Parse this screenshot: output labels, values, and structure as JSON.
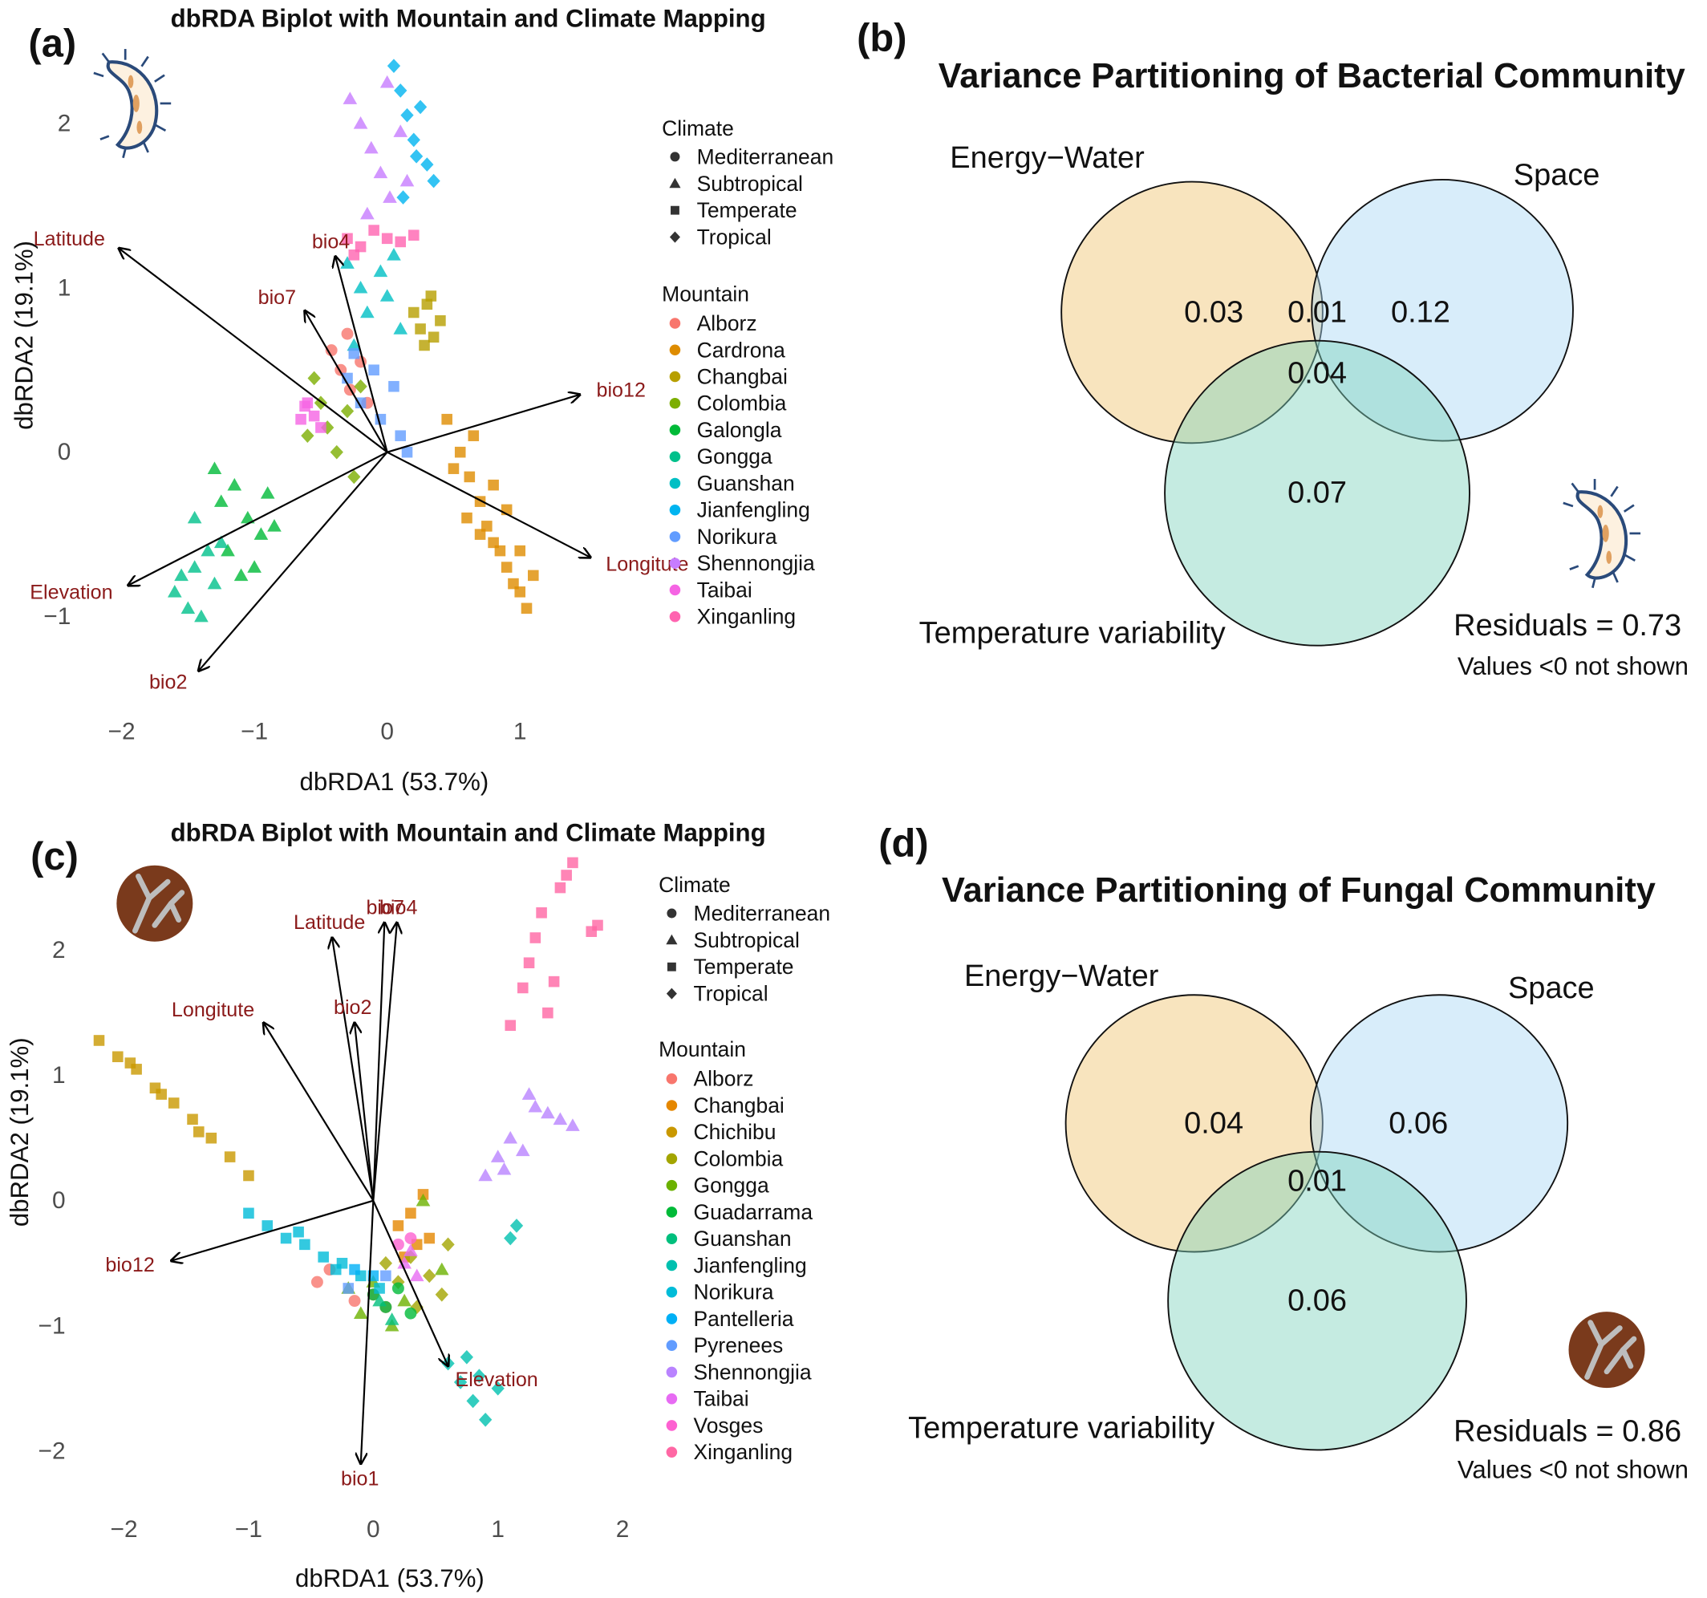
{
  "chart_data": [
    {
      "type": "scatter",
      "panel_label": "(a)",
      "title": "dbRDA Biplot with Mountain and Climate Mapping",
      "xlabel": "dbRDA1 (53.7%)",
      "ylabel": "dbRDA2 (19.1%)",
      "xlim": [
        -2.3,
        1.2
      ],
      "ylim": [
        -1.6,
        2.4
      ],
      "xticks": [
        {
          "value": -2,
          "label": "−2"
        },
        {
          "value": -1,
          "label": "−1"
        },
        0,
        1
      ],
      "yticks": [
        {
          "value": -1,
          "label": "−1"
        },
        0,
        1,
        2
      ],
      "climate_title": "Climate",
      "climates": [
        {
          "name": "Mediterranean",
          "shape": "circle"
        },
        {
          "name": "Subtropical",
          "shape": "triangle"
        },
        {
          "name": "Temperate",
          "shape": "square"
        },
        {
          "name": "Tropical",
          "shape": "diamond"
        }
      ],
      "legend_title": "Mountain",
      "series": [
        {
          "name": "Alborz",
          "color": "#F8766D",
          "shape": "circle",
          "x": [
            -0.42,
            -0.35,
            -0.28,
            -0.2,
            -0.15,
            -0.3
          ],
          "y": [
            0.62,
            0.5,
            0.38,
            0.55,
            0.3,
            0.72
          ]
        },
        {
          "name": "Cardrona",
          "color": "#DE8C00",
          "shape": "square",
          "x": [
            0.45,
            0.55,
            0.62,
            0.7,
            0.75,
            0.8,
            0.85,
            0.9,
            0.95,
            1.0,
            1.05,
            1.1,
            0.6,
            0.7,
            0.8,
            0.9,
            1.0,
            0.65,
            0.5
          ],
          "y": [
            0.2,
            0.0,
            -0.15,
            -0.3,
            -0.45,
            -0.55,
            -0.6,
            -0.7,
            -0.8,
            -0.85,
            -0.95,
            -0.75,
            -0.4,
            -0.5,
            -0.2,
            -0.35,
            -0.6,
            0.1,
            -0.1
          ]
        },
        {
          "name": "Changbai",
          "color": "#B79F00",
          "shape": "square",
          "x": [
            0.2,
            0.25,
            0.3,
            0.35,
            0.4,
            0.28,
            0.33
          ],
          "y": [
            0.85,
            0.75,
            0.9,
            0.7,
            0.8,
            0.65,
            0.95
          ]
        },
        {
          "name": "Colombia",
          "color": "#7CAE00",
          "shape": "diamond",
          "x": [
            -0.6,
            -0.5,
            -0.45,
            -0.38,
            -0.3,
            -0.25,
            -0.55,
            -0.2
          ],
          "y": [
            0.1,
            0.3,
            0.15,
            0.0,
            0.25,
            -0.15,
            0.45,
            0.4
          ]
        },
        {
          "name": "Galongla",
          "color": "#00BA38",
          "shape": "triangle",
          "x": [
            -1.25,
            -1.15,
            -1.05,
            -0.95,
            -0.9,
            -1.2,
            -1.1,
            -1.0,
            -0.85,
            -1.3
          ],
          "y": [
            -0.3,
            -0.2,
            -0.4,
            -0.5,
            -0.25,
            -0.6,
            -0.75,
            -0.7,
            -0.45,
            -0.1
          ]
        },
        {
          "name": "Gongga",
          "color": "#00C08B",
          "shape": "triangle",
          "x": [
            -1.6,
            -1.5,
            -1.45,
            -1.4,
            -1.35,
            -1.3,
            -1.55,
            -1.25,
            -1.45
          ],
          "y": [
            -0.85,
            -0.95,
            -0.7,
            -1.0,
            -0.6,
            -0.8,
            -0.75,
            -0.55,
            -0.4
          ]
        },
        {
          "name": "Guanshan",
          "color": "#00BFC4",
          "shape": "triangle",
          "x": [
            -0.3,
            -0.2,
            -0.15,
            -0.05,
            0.0,
            0.1,
            -0.25,
            0.05
          ],
          "y": [
            1.15,
            1.0,
            0.85,
            1.1,
            0.95,
            0.75,
            0.65,
            1.2
          ]
        },
        {
          "name": "Jianfengling",
          "color": "#00B4F0",
          "shape": "diamond",
          "x": [
            0.05,
            0.1,
            0.15,
            0.2,
            0.25,
            0.3,
            0.35,
            0.12,
            0.22
          ],
          "y": [
            2.35,
            2.2,
            2.05,
            1.9,
            2.1,
            1.75,
            1.65,
            1.55,
            1.8
          ]
        },
        {
          "name": "Norikura",
          "color": "#619CFF",
          "shape": "square",
          "x": [
            -0.3,
            -0.2,
            -0.1,
            -0.05,
            0.05,
            0.1,
            0.15,
            -0.25
          ],
          "y": [
            0.45,
            0.3,
            0.5,
            0.2,
            0.4,
            0.1,
            0.0,
            0.6
          ]
        },
        {
          "name": "Shennongjia",
          "color": "#C77CFF",
          "shape": "triangle",
          "x": [
            -0.28,
            -0.2,
            -0.12,
            -0.05,
            0.02,
            0.1,
            0.15,
            -0.15,
            0.0
          ],
          "y": [
            2.15,
            2.0,
            1.85,
            1.7,
            1.55,
            1.95,
            1.65,
            1.45,
            2.25
          ]
        },
        {
          "name": "Taibai",
          "color": "#F564E3",
          "shape": "square",
          "x": [
            -0.65,
            -0.6,
            -0.55,
            -0.5,
            -0.62
          ],
          "y": [
            0.2,
            0.3,
            0.22,
            0.15,
            0.28
          ]
        },
        {
          "name": "Xinganling",
          "color": "#FF64B0",
          "shape": "square",
          "x": [
            -0.3,
            -0.2,
            -0.1,
            0.0,
            0.1,
            0.2,
            -0.25
          ],
          "y": [
            1.3,
            1.25,
            1.35,
            1.3,
            1.28,
            1.32,
            1.2
          ]
        }
      ],
      "arrows": [
        {
          "label": "Latitude",
          "x": -2.02,
          "y": 1.24
        },
        {
          "label": "bio4",
          "x": -0.39,
          "y": 1.19
        },
        {
          "label": "bio7",
          "x": -0.62,
          "y": 0.86
        },
        {
          "label": "bio12",
          "x": 1.45,
          "y": 0.35
        },
        {
          "label": "Longitute",
          "x": 1.53,
          "y": -0.64
        },
        {
          "label": "Elevation",
          "x": -1.95,
          "y": -0.81
        },
        {
          "label": "bio2",
          "x": -1.42,
          "y": -1.33
        }
      ]
    },
    {
      "type": "venn",
      "panel_label": "(b)",
      "title": "Variance Partitioning of Bacterial Community",
      "sets": [
        {
          "name": "Energy−Water",
          "color": "#EFC46E"
        },
        {
          "name": "Space",
          "color": "#A9D8F5"
        },
        {
          "name": "Temperature variability",
          "color": "#7FD3BD"
        }
      ],
      "regions": [
        {
          "sets": [
            "Energy−Water"
          ],
          "value": 0.03
        },
        {
          "sets": [
            "Energy−Water",
            "Space"
          ],
          "value": 0.01
        },
        {
          "sets": [
            "Space"
          ],
          "value": 0.12
        },
        {
          "sets": [
            "Energy−Water",
            "Space",
            "Temperature variability"
          ],
          "value": 0.04
        },
        {
          "sets": [
            "Temperature variability"
          ],
          "value": 0.07
        }
      ],
      "residuals": "Residuals = 0.73",
      "note": "Values <0 not shown"
    },
    {
      "type": "scatter",
      "panel_label": "(c)",
      "title": "dbRDA Biplot with Mountain and Climate Mapping",
      "xlabel": "dbRDA1 (53.7%)",
      "ylabel": "dbRDA2 (19.1%)",
      "xlim": [
        -2.4,
        2.15
      ],
      "ylim": [
        -2.4,
        2.8
      ],
      "xticks": [
        {
          "value": -2,
          "label": "−2"
        },
        {
          "value": -1,
          "label": "−1"
        },
        0,
        1,
        2
      ],
      "yticks": [
        {
          "value": -2,
          "label": "−2"
        },
        {
          "value": -1,
          "label": "−1"
        },
        0,
        1,
        2
      ],
      "climate_title": "Climate",
      "climates": [
        {
          "name": "Mediterranean",
          "shape": "circle"
        },
        {
          "name": "Subtropical",
          "shape": "triangle"
        },
        {
          "name": "Temperate",
          "shape": "square"
        },
        {
          "name": "Tropical",
          "shape": "diamond"
        }
      ],
      "legend_title": "Mountain",
      "series": [
        {
          "name": "Alborz",
          "color": "#F8766D",
          "shape": "circle",
          "x": [
            -0.45,
            -0.35,
            -0.15,
            0.0,
            0.1
          ],
          "y": [
            -0.65,
            -0.55,
            -0.8,
            -0.75,
            -0.85
          ]
        },
        {
          "name": "Changbai",
          "color": "#E58700",
          "shape": "square",
          "x": [
            0.2,
            0.3,
            0.4,
            0.45,
            0.35,
            0.25
          ],
          "y": [
            -0.2,
            -0.1,
            0.05,
            -0.3,
            -0.35,
            -0.45
          ]
        },
        {
          "name": "Chichibu",
          "color": "#C99800",
          "shape": "square",
          "x": [
            -2.2,
            -2.05,
            -1.9,
            -1.75,
            -1.6,
            -1.45,
            -1.3,
            -1.15,
            -1.0,
            -1.95,
            -1.7,
            -1.4
          ],
          "y": [
            1.28,
            1.15,
            1.05,
            0.9,
            0.78,
            0.65,
            0.5,
            0.35,
            0.2,
            1.1,
            0.85,
            0.55
          ]
        },
        {
          "name": "Colombia",
          "color": "#A3A500",
          "shape": "diamond",
          "x": [
            0.1,
            0.2,
            0.3,
            0.45,
            0.55,
            0.6,
            0.35
          ],
          "y": [
            -0.5,
            -0.65,
            -0.45,
            -0.6,
            -0.75,
            -0.35,
            -0.85
          ]
        },
        {
          "name": "Gongga",
          "color": "#6BB100",
          "shape": "triangle",
          "x": [
            -0.2,
            -0.1,
            0.0,
            0.15,
            0.25,
            0.4,
            0.55
          ],
          "y": [
            -0.7,
            -0.9,
            -0.65,
            -1.0,
            -0.8,
            0.0,
            -0.55
          ]
        },
        {
          "name": "Guadarrama",
          "color": "#00BA38",
          "shape": "circle",
          "x": [
            0.0,
            0.1,
            0.2,
            0.3
          ],
          "y": [
            -0.75,
            -0.85,
            -0.7,
            -0.9
          ]
        },
        {
          "name": "Guanshan",
          "color": "#00BF7D",
          "shape": "triangle",
          "x": [
            0.05,
            0.15
          ],
          "y": [
            -0.8,
            -0.95
          ]
        },
        {
          "name": "Jianfengling",
          "color": "#00C0AF",
          "shape": "diamond",
          "x": [
            0.6,
            0.7,
            0.8,
            0.9,
            1.0,
            0.75,
            0.85,
            1.1,
            1.15
          ],
          "y": [
            -1.3,
            -1.45,
            -1.6,
            -1.75,
            -1.5,
            -1.25,
            -1.4,
            -0.3,
            -0.2
          ]
        },
        {
          "name": "Norikura",
          "color": "#00BCD8",
          "shape": "square",
          "x": [
            -1.0,
            -0.85,
            -0.7,
            -0.55,
            -0.4,
            -0.25,
            -0.1,
            0.05,
            -0.6,
            -0.3
          ],
          "y": [
            -0.1,
            -0.2,
            -0.3,
            -0.35,
            -0.45,
            -0.5,
            -0.6,
            -0.7,
            -0.25,
            -0.55
          ]
        },
        {
          "name": "Pantelleria",
          "color": "#00B0F6",
          "shape": "square",
          "x": [
            -0.15,
            0.0
          ],
          "y": [
            -0.55,
            -0.6
          ]
        },
        {
          "name": "Pyrenees",
          "color": "#619CFF",
          "shape": "square",
          "x": [
            -0.2,
            0.1
          ],
          "y": [
            -0.7,
            -0.6
          ]
        },
        {
          "name": "Shennongjia",
          "color": "#B983FF",
          "shape": "triangle",
          "x": [
            0.9,
            1.0,
            1.1,
            1.2,
            1.3,
            1.4,
            1.5,
            1.6,
            1.05,
            1.25
          ],
          "y": [
            0.2,
            0.35,
            0.5,
            0.4,
            0.75,
            0.7,
            0.65,
            0.6,
            0.25,
            0.85
          ]
        },
        {
          "name": "Taibai",
          "color": "#E76BF3",
          "shape": "triangle",
          "x": [
            0.25,
            0.35,
            0.3
          ],
          "y": [
            -0.5,
            -0.6,
            -0.4
          ]
        },
        {
          "name": "Vosges",
          "color": "#FD61D1",
          "shape": "circle",
          "x": [
            0.2,
            0.3
          ],
          "y": [
            -0.35,
            -0.3
          ]
        },
        {
          "name": "Xinganling",
          "color": "#FF67A4",
          "shape": "square",
          "x": [
            1.1,
            1.2,
            1.3,
            1.35,
            1.45,
            1.5,
            1.55,
            1.6,
            1.75,
            1.8,
            1.25,
            1.4
          ],
          "y": [
            1.4,
            1.7,
            2.1,
            2.3,
            1.75,
            2.5,
            2.6,
            2.7,
            2.15,
            2.2,
            1.9,
            1.5
          ]
        }
      ],
      "arrows": [
        {
          "label": "bio7",
          "x": 0.09,
          "y": 2.22
        },
        {
          "label": "bio4",
          "x": 0.19,
          "y": 2.22
        },
        {
          "label": "Latitude",
          "x": -0.33,
          "y": 2.1
        },
        {
          "label": "bio2",
          "x": -0.15,
          "y": 1.42
        },
        {
          "label": "Longitute",
          "x": -0.88,
          "y": 1.42
        },
        {
          "label": "bio12",
          "x": -1.62,
          "y": -0.48
        },
        {
          "label": "Elevation",
          "x": 0.6,
          "y": -1.32
        },
        {
          "label": "bio1",
          "x": -0.1,
          "y": -2.1
        }
      ]
    },
    {
      "type": "venn",
      "panel_label": "(d)",
      "title": "Variance Partitioning of Fungal Community",
      "sets": [
        {
          "name": "Energy−Water",
          "color": "#EFC46E"
        },
        {
          "name": "Space",
          "color": "#A9D8F5"
        },
        {
          "name": "Temperature variability",
          "color": "#7FD3BD"
        }
      ],
      "regions": [
        {
          "sets": [
            "Energy−Water"
          ],
          "value": 0.04
        },
        {
          "sets": [
            "Space"
          ],
          "value": 0.06
        },
        {
          "sets": [
            "Energy−Water",
            "Space",
            "Temperature variability"
          ],
          "value": 0.01
        },
        {
          "sets": [
            "Temperature variability"
          ],
          "value": 0.06
        }
      ],
      "residuals": "Residuals = 0.86",
      "note": "Values <0 not shown"
    }
  ]
}
